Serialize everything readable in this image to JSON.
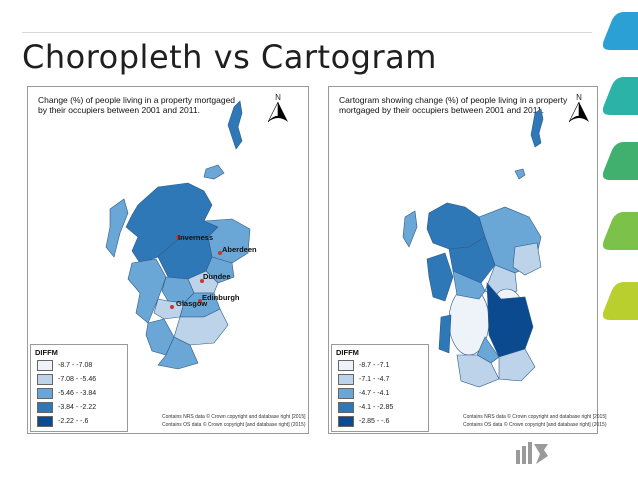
{
  "slide": {
    "title": "Choropleth vs Cartogram"
  },
  "left_map": {
    "title": "Change (%) of people living in a property mortgaged by their occupiers between 2001 and 2011.",
    "north_label": "N",
    "legend": {
      "title": "DIFFM",
      "items": [
        {
          "label": "-8.7 - -7.08",
          "color": "#eef3fa"
        },
        {
          "label": "-7.08 - -5.46",
          "color": "#bcd3ea"
        },
        {
          "label": "-5.46 - -3.84",
          "color": "#6aa6d6"
        },
        {
          "label": "-3.84 - -2.22",
          "color": "#2f78b8"
        },
        {
          "label": "-2.22 - -.6",
          "color": "#0b4a8e"
        }
      ]
    },
    "cities": [
      "Inverness",
      "Aberdeen",
      "Dundee",
      "Edinburgh",
      "Glasgow"
    ],
    "credit1": "Contains NRS data © Crown copyright and database right [2015]",
    "credit2": "Contains OS data © Crown copyright [and database right] (2015)"
  },
  "right_map": {
    "title": "Cartogram showing change (%) of people living in a property mortgaged by their occupiers between 2001 and 2011.",
    "north_label": "N",
    "legend": {
      "title": "DIFFM",
      "items": [
        {
          "label": "-8.7 - -7.1",
          "color": "#eef3fa"
        },
        {
          "label": "-7.1 - -4.7",
          "color": "#bcd3ea"
        },
        {
          "label": "-4.7 - -4.1",
          "color": "#6aa6d6"
        },
        {
          "label": "-4.1 - -2.85",
          "color": "#2f78b8"
        },
        {
          "label": "-2.85 - -.6",
          "color": "#0b4a8e"
        }
      ]
    },
    "credit1": "Contains NRS data © Crown copyright and database right [2015]",
    "credit2": "Contains OS data © Crown copyright [and database right] (2015)"
  },
  "decor_colors": [
    "#2aa0d4",
    "#2ab3a6",
    "#5cbf5a",
    "#8dc63f",
    "#b9cf2e"
  ]
}
